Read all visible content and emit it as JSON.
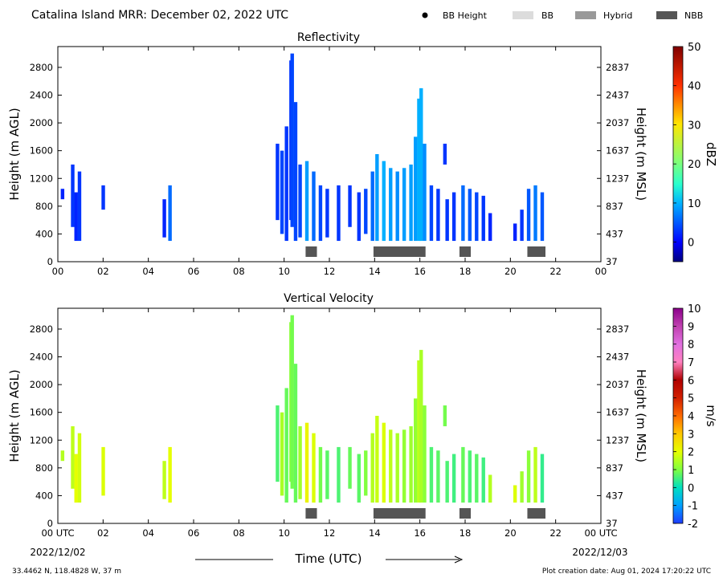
{
  "header": {
    "title": "Catalina Island MRR:  December 02, 2022 UTC",
    "legend": [
      {
        "label": "BB Height",
        "kind": "dot",
        "color": "#000000"
      },
      {
        "label": "BB",
        "kind": "box",
        "color": "#dcdcdc"
      },
      {
        "label": "Hybrid",
        "kind": "box",
        "color": "#999999"
      },
      {
        "label": "NBB",
        "kind": "box",
        "color": "#555555"
      }
    ]
  },
  "footer": {
    "location": "33.4462 N, 118.4828 W, 37 m",
    "creation": "Plot creation date: Aug 01, 2024 17:20:22 UTC",
    "xlabel": "Time (UTC)",
    "start_date": "2022/12/02",
    "end_date": "2022/12/03"
  },
  "chart_data": [
    {
      "type": "heatmap",
      "title": "Reflectivity",
      "ylabel_left": "Height (m AGL)",
      "ylabel_right": "Height (m MSL)",
      "xticks": [
        "00",
        "02",
        "04",
        "06",
        "08",
        "10",
        "12",
        "14",
        "16",
        "18",
        "20",
        "22",
        "00"
      ],
      "xlim": [
        0,
        24
      ],
      "ylim": [
        0,
        3100
      ],
      "yticks_left": [
        0,
        400,
        800,
        1200,
        1600,
        2000,
        2400,
        2800
      ],
      "yticks_right": [
        37,
        437,
        837,
        1237,
        1637,
        2037,
        2437,
        2837
      ],
      "colorbar": {
        "label": "dBZ",
        "min": -5,
        "max": 50,
        "ticks": [
          0,
          10,
          20,
          30,
          40,
          50
        ]
      },
      "echo_columns": [
        {
          "t": 0.2,
          "bottom": 900,
          "top": 1050,
          "value": 2
        },
        {
          "t": 0.65,
          "bottom": 500,
          "top": 1400,
          "value": 3
        },
        {
          "t": 0.8,
          "bottom": 300,
          "top": 1000,
          "value": 2
        },
        {
          "t": 0.95,
          "bottom": 300,
          "top": 1300,
          "value": 3
        },
        {
          "t": 2.0,
          "bottom": 750,
          "top": 1100,
          "value": 3
        },
        {
          "t": 4.7,
          "bottom": 350,
          "top": 900,
          "value": 2
        },
        {
          "t": 4.95,
          "bottom": 300,
          "top": 1100,
          "value": 6
        },
        {
          "t": 9.7,
          "bottom": 600,
          "top": 1700,
          "value": 3
        },
        {
          "t": 9.9,
          "bottom": 400,
          "top": 1600,
          "value": 4
        },
        {
          "t": 10.1,
          "bottom": 300,
          "top": 1950,
          "value": 3
        },
        {
          "t": 10.3,
          "bottom": 600,
          "top": 2900,
          "value": 3
        },
        {
          "t": 10.35,
          "bottom": 500,
          "top": 3000,
          "value": 4
        },
        {
          "t": 10.5,
          "bottom": 300,
          "top": 2300,
          "value": 4
        },
        {
          "t": 10.7,
          "bottom": 350,
          "top": 1400,
          "value": 4
        },
        {
          "t": 11.0,
          "bottom": 300,
          "top": 1450,
          "value": 9
        },
        {
          "t": 11.3,
          "bottom": 300,
          "top": 1300,
          "value": 6
        },
        {
          "t": 11.6,
          "bottom": 300,
          "top": 1100,
          "value": 4
        },
        {
          "t": 11.9,
          "bottom": 350,
          "top": 1050,
          "value": 3
        },
        {
          "t": 12.4,
          "bottom": 300,
          "top": 1100,
          "value": 3
        },
        {
          "t": 12.9,
          "bottom": 500,
          "top": 1100,
          "value": 3
        },
        {
          "t": 13.3,
          "bottom": 300,
          "top": 1000,
          "value": 3
        },
        {
          "t": 13.6,
          "bottom": 400,
          "top": 1050,
          "value": 4
        },
        {
          "t": 13.9,
          "bottom": 300,
          "top": 1300,
          "value": 6
        },
        {
          "t": 14.1,
          "bottom": 300,
          "top": 1550,
          "value": 9
        },
        {
          "t": 14.4,
          "bottom": 300,
          "top": 1450,
          "value": 10
        },
        {
          "t": 14.7,
          "bottom": 300,
          "top": 1350,
          "value": 9
        },
        {
          "t": 15.0,
          "bottom": 300,
          "top": 1300,
          "value": 8
        },
        {
          "t": 15.3,
          "bottom": 300,
          "top": 1350,
          "value": 9
        },
        {
          "t": 15.6,
          "bottom": 300,
          "top": 1400,
          "value": 9
        },
        {
          "t": 15.8,
          "bottom": 300,
          "top": 1800,
          "value": 9
        },
        {
          "t": 15.95,
          "bottom": 300,
          "top": 2350,
          "value": 10
        },
        {
          "t": 16.05,
          "bottom": 300,
          "top": 2500,
          "value": 10
        },
        {
          "t": 16.2,
          "bottom": 300,
          "top": 1700,
          "value": 8
        },
        {
          "t": 16.5,
          "bottom": 300,
          "top": 1100,
          "value": 4
        },
        {
          "t": 16.8,
          "bottom": 300,
          "top": 1050,
          "value": 3
        },
        {
          "t": 17.1,
          "bottom": 1400,
          "top": 1700,
          "value": 3
        },
        {
          "t": 17.2,
          "bottom": 300,
          "top": 900,
          "value": 3
        },
        {
          "t": 17.5,
          "bottom": 300,
          "top": 1000,
          "value": 3
        },
        {
          "t": 17.9,
          "bottom": 300,
          "top": 1100,
          "value": 6
        },
        {
          "t": 18.2,
          "bottom": 300,
          "top": 1050,
          "value": 5
        },
        {
          "t": 18.5,
          "bottom": 300,
          "top": 1000,
          "value": 4
        },
        {
          "t": 18.8,
          "bottom": 300,
          "top": 950,
          "value": 3
        },
        {
          "t": 19.1,
          "bottom": 300,
          "top": 700,
          "value": 2
        },
        {
          "t": 20.2,
          "bottom": 300,
          "top": 550,
          "value": 2
        },
        {
          "t": 20.5,
          "bottom": 300,
          "top": 750,
          "value": 3
        },
        {
          "t": 20.8,
          "bottom": 300,
          "top": 1050,
          "value": 5
        },
        {
          "t": 21.1,
          "bottom": 300,
          "top": 1100,
          "value": 7
        },
        {
          "t": 21.4,
          "bottom": 300,
          "top": 1000,
          "value": 5
        }
      ],
      "bright_band": [
        {
          "start": 10.95,
          "end": 11.45,
          "type": "NBB"
        },
        {
          "start": 13.95,
          "end": 16.25,
          "type": "NBB"
        },
        {
          "start": 17.75,
          "end": 18.25,
          "type": "NBB"
        },
        {
          "start": 20.75,
          "end": 21.55,
          "type": "NBB"
        }
      ]
    },
    {
      "type": "heatmap",
      "title": "Vertical Velocity",
      "ylabel_left": "Height (m AGL)",
      "ylabel_right": "Height (m MSL)",
      "xticks": [
        "00 UTC",
        "02",
        "04",
        "06",
        "08",
        "10",
        "12",
        "14",
        "16",
        "18",
        "20",
        "22",
        "00 UTC"
      ],
      "xlim": [
        0,
        24
      ],
      "ylim": [
        0,
        3100
      ],
      "yticks_left": [
        0,
        400,
        800,
        1200,
        1600,
        2000,
        2400,
        2800
      ],
      "yticks_right": [
        37,
        437,
        837,
        1237,
        1637,
        2037,
        2437,
        2837
      ],
      "colorbar": {
        "label": "m/s",
        "min": -2,
        "max": 10,
        "ticks": [
          -2,
          -1,
          0,
          1,
          2,
          3,
          4,
          5,
          6,
          7,
          8,
          9,
          10
        ]
      },
      "echo_columns": [
        {
          "t": 0.2,
          "bottom": 900,
          "top": 1050,
          "value": 1.5
        },
        {
          "t": 0.65,
          "bottom": 500,
          "top": 1400,
          "value": 1.6
        },
        {
          "t": 0.8,
          "bottom": 300,
          "top": 1000,
          "value": 2.0
        },
        {
          "t": 0.95,
          "bottom": 300,
          "top": 1300,
          "value": 1.8
        },
        {
          "t": 2.0,
          "bottom": 400,
          "top": 1100,
          "value": 1.9
        },
        {
          "t": 4.7,
          "bottom": 350,
          "top": 900,
          "value": 1.6
        },
        {
          "t": 4.95,
          "bottom": 300,
          "top": 1100,
          "value": 2.0
        },
        {
          "t": 9.7,
          "bottom": 600,
          "top": 1700,
          "value": 0.6
        },
        {
          "t": 9.9,
          "bottom": 400,
          "top": 1600,
          "value": 1.4
        },
        {
          "t": 10.1,
          "bottom": 300,
          "top": 1950,
          "value": 0.8
        },
        {
          "t": 10.3,
          "bottom": 600,
          "top": 2900,
          "value": 1.1
        },
        {
          "t": 10.35,
          "bottom": 500,
          "top": 3000,
          "value": 0.9
        },
        {
          "t": 10.5,
          "bottom": 300,
          "top": 2300,
          "value": 0.8
        },
        {
          "t": 10.7,
          "bottom": 350,
          "top": 1400,
          "value": 1.3
        },
        {
          "t": 11.0,
          "bottom": 300,
          "top": 1450,
          "value": 2.2
        },
        {
          "t": 11.3,
          "bottom": 300,
          "top": 1300,
          "value": 1.9
        },
        {
          "t": 11.6,
          "bottom": 300,
          "top": 1100,
          "value": 0.9
        },
        {
          "t": 11.9,
          "bottom": 350,
          "top": 1050,
          "value": 0.7
        },
        {
          "t": 12.4,
          "bottom": 300,
          "top": 1100,
          "value": 0.6
        },
        {
          "t": 12.9,
          "bottom": 500,
          "top": 1100,
          "value": 0.8
        },
        {
          "t": 13.3,
          "bottom": 300,
          "top": 1000,
          "value": 0.7
        },
        {
          "t": 13.6,
          "bottom": 400,
          "top": 1050,
          "value": 1.0
        },
        {
          "t": 13.9,
          "bottom": 300,
          "top": 1300,
          "value": 1.5
        },
        {
          "t": 14.1,
          "bottom": 300,
          "top": 1550,
          "value": 1.7
        },
        {
          "t": 14.4,
          "bottom": 300,
          "top": 1450,
          "value": 1.9
        },
        {
          "t": 14.7,
          "bottom": 300,
          "top": 1350,
          "value": 1.6
        },
        {
          "t": 15.0,
          "bottom": 300,
          "top": 1300,
          "value": 1.4
        },
        {
          "t": 15.3,
          "bottom": 300,
          "top": 1350,
          "value": 1.2
        },
        {
          "t": 15.6,
          "bottom": 300,
          "top": 1400,
          "value": 1.3
        },
        {
          "t": 15.8,
          "bottom": 300,
          "top": 1800,
          "value": 1.2
        },
        {
          "t": 15.95,
          "bottom": 300,
          "top": 2350,
          "value": 1.6
        },
        {
          "t": 16.05,
          "bottom": 300,
          "top": 2500,
          "value": 1.4
        },
        {
          "t": 16.2,
          "bottom": 300,
          "top": 1700,
          "value": 1.1
        },
        {
          "t": 16.5,
          "bottom": 300,
          "top": 1100,
          "value": 0.6
        },
        {
          "t": 16.8,
          "bottom": 300,
          "top": 1050,
          "value": 0.7
        },
        {
          "t": 17.1,
          "bottom": 1400,
          "top": 1700,
          "value": 0.9
        },
        {
          "t": 17.2,
          "bottom": 300,
          "top": 900,
          "value": 0.6
        },
        {
          "t": 17.5,
          "bottom": 300,
          "top": 1000,
          "value": 0.5
        },
        {
          "t": 17.9,
          "bottom": 300,
          "top": 1100,
          "value": 0.8
        },
        {
          "t": 18.2,
          "bottom": 300,
          "top": 1050,
          "value": 0.6
        },
        {
          "t": 18.5,
          "bottom": 300,
          "top": 1000,
          "value": 0.7
        },
        {
          "t": 18.8,
          "bottom": 300,
          "top": 950,
          "value": 0.5
        },
        {
          "t": 19.1,
          "bottom": 300,
          "top": 700,
          "value": 1.5
        },
        {
          "t": 20.2,
          "bottom": 300,
          "top": 550,
          "value": 1.9
        },
        {
          "t": 20.5,
          "bottom": 300,
          "top": 750,
          "value": 1.3
        },
        {
          "t": 20.8,
          "bottom": 300,
          "top": 1050,
          "value": 1.1
        },
        {
          "t": 21.1,
          "bottom": 300,
          "top": 1100,
          "value": 1.6
        },
        {
          "t": 21.4,
          "bottom": 300,
          "top": 1000,
          "value": 0.4
        }
      ],
      "bright_band": [
        {
          "start": 10.95,
          "end": 11.45,
          "type": "NBB"
        },
        {
          "start": 13.95,
          "end": 16.25,
          "type": "NBB"
        },
        {
          "start": 17.75,
          "end": 18.25,
          "type": "NBB"
        },
        {
          "start": 20.75,
          "end": 21.55,
          "type": "NBB"
        }
      ]
    }
  ]
}
